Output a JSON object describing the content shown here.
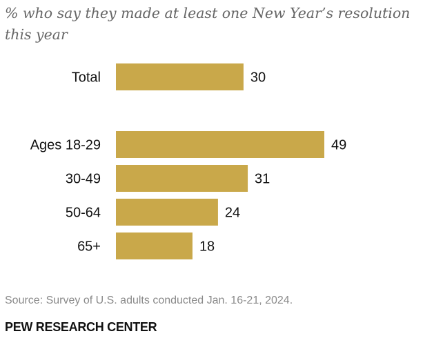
{
  "chart_data": {
    "type": "bar",
    "orientation": "horizontal",
    "title": "% who say they made at least one New Year’s resolution this year",
    "xlabel": "",
    "ylabel": "",
    "xlim": [
      0,
      100
    ],
    "grid": false,
    "categories": [
      "Total",
      "Ages 18-29",
      "30-49",
      "50-64",
      "65+"
    ],
    "values": [
      30,
      49,
      31,
      24,
      18
    ],
    "value_labels": [
      "30",
      "49",
      "31",
      "24",
      "18"
    ],
    "bar_color": "#c9a84a"
  },
  "source": "Source: Survey of U.S. adults conducted Jan. 16-21, 2024.",
  "org": "PEW RESEARCH CENTER",
  "colors": {
    "bar": "#c9a84a",
    "subtitle": "#666666",
    "source": "#8a8a8a",
    "text": "#111111"
  }
}
